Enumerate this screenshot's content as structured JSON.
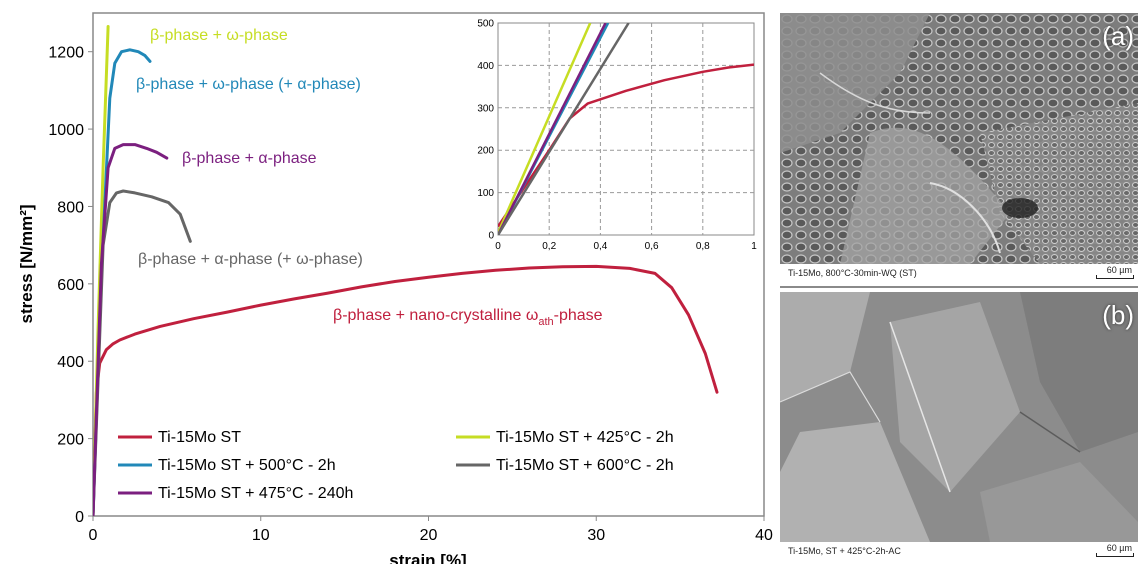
{
  "chart_data": [
    {
      "type": "line",
      "title": "",
      "xlabel": "strain [%]",
      "ylabel": "stress [N/mm²]",
      "xlim": [
        0,
        40
      ],
      "ylim": [
        0,
        1300
      ],
      "x_ticks": [
        0,
        10,
        20,
        30,
        40
      ],
      "y_ticks": [
        0,
        200,
        400,
        600,
        800,
        1000,
        1200
      ],
      "grid": false,
      "legend_position": "bottom-left",
      "series": [
        {
          "name": "Ti-15Mo ST",
          "color": "#c0203e",
          "x": [
            0,
            0.2,
            0.4,
            0.8,
            1.2,
            1.6,
            2.5,
            4,
            6,
            8,
            10,
            12,
            14,
            16,
            18,
            20,
            22,
            24,
            26,
            28,
            30,
            32,
            33.5,
            34.5,
            35.5,
            36.5,
            37.2
          ],
          "y": [
            0,
            320,
            395,
            430,
            445,
            455,
            470,
            490,
            510,
            527,
            545,
            561,
            576,
            592,
            606,
            617,
            627,
            635,
            641,
            644,
            645,
            640,
            627,
            590,
            520,
            420,
            320
          ]
        },
        {
          "name": "Ti-15Mo ST + 425°C - 2h",
          "color": "#c6dd23",
          "x": [
            0,
            0.3,
            0.6,
            0.9
          ],
          "y": [
            0,
            480,
            900,
            1265
          ]
        },
        {
          "name": "Ti-15Mo ST + 500°C - 2h",
          "color": "#2188b8",
          "x": [
            0,
            0.5,
            1.0,
            1.3,
            1.7,
            2.2,
            2.7,
            3.1,
            3.4
          ],
          "y": [
            0,
            620,
            1080,
            1170,
            1200,
            1205,
            1200,
            1190,
            1175
          ]
        },
        {
          "name": "Ti-15Mo ST + 600°C - 2h",
          "color": "#666666",
          "x": [
            0,
            0.6,
            1.0,
            1.4,
            1.8,
            2.5,
            3.5,
            4.5,
            5.2,
            5.8
          ],
          "y": [
            0,
            700,
            810,
            835,
            840,
            835,
            825,
            810,
            780,
            710
          ]
        },
        {
          "name": "Ti-15Mo ST + 475°C - 240h",
          "color": "#7b1f7f",
          "x": [
            0,
            0.5,
            0.9,
            1.3,
            1.8,
            2.5,
            3.2,
            3.8,
            4.4
          ],
          "y": [
            0,
            650,
            900,
            950,
            960,
            960,
            950,
            940,
            925
          ]
        }
      ],
      "annotations": [
        {
          "text": "β-phase + ω-phase",
          "color": "#c6dd23"
        },
        {
          "text": "β-phase + ω-phase (+ α-phase)",
          "color": "#2188b8"
        },
        {
          "text": "β-phase + α-phase",
          "color": "#7b1f7f"
        },
        {
          "text": "β-phase + α-phase (+ ω-phase)",
          "color": "#666666"
        },
        {
          "text": "β-phase + nano-crystalline ω",
          "subscript": "ath",
          "suffix": "-phase",
          "color": "#c0203e"
        }
      ]
    },
    {
      "type": "line",
      "title": "",
      "xlim": [
        0,
        1
      ],
      "ylim": [
        0,
        500
      ],
      "x_tick_labels": [
        "0",
        "0,2",
        "0,4",
        "0,6",
        "0,8",
        "1"
      ],
      "y_tick_labels": [
        "0",
        "100",
        "200",
        "300",
        "400",
        "500"
      ],
      "x_ticks": [
        0,
        0.2,
        0.4,
        0.6,
        0.8,
        1
      ],
      "y_ticks": [
        0,
        100,
        200,
        300,
        400,
        500
      ],
      "grid": true,
      "series": [
        {
          "color": "#c0203e",
          "x": [
            0,
            0.1,
            0.2,
            0.28,
            0.35,
            0.5,
            0.65,
            0.8,
            0.9,
            1.0
          ],
          "y": [
            20,
            110,
            200,
            275,
            310,
            340,
            365,
            385,
            395,
            402
          ]
        },
        {
          "color": "#c6dd23",
          "x": [
            0,
            0.36
          ],
          "y": [
            5,
            500
          ]
        },
        {
          "color": "#2188b8",
          "x": [
            0,
            0.43
          ],
          "y": [
            0,
            500
          ]
        },
        {
          "color": "#7b1f7f",
          "x": [
            0,
            0.42
          ],
          "y": [
            0,
            500
          ]
        },
        {
          "color": "#666666",
          "x": [
            0,
            0.51
          ],
          "y": [
            0,
            500
          ]
        }
      ]
    }
  ],
  "images": [
    {
      "caption": "Ti-15Mo, 800°C-30min-WQ (ST)",
      "letter": "(a)",
      "scale_label": "60 µm"
    },
    {
      "caption": "Ti-15Mo, ST + 425°C-2h-AC",
      "letter": "(b)",
      "scale_label": "60 µm"
    }
  ]
}
